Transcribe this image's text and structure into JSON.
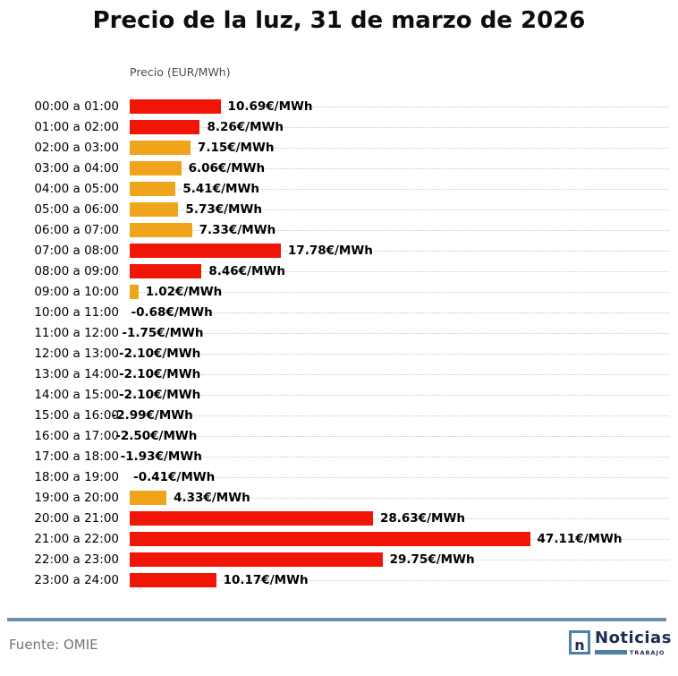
{
  "title": "Precio de la luz, 31 de marzo de 2026",
  "axis_title": "Precio (EUR/MWh)",
  "colors": {
    "red": "#f01507",
    "orange": "#f0a41c",
    "grid": "#c9c9c9",
    "divider": "#6a93ab",
    "navy": "#1d2c50",
    "steel_blue": "#4e7fa6",
    "source_gray": "#757575"
  },
  "chart_data": {
    "type": "bar",
    "orientation": "horizontal",
    "title": "Precio de la luz, 31 de marzo de 2026",
    "xlabel": "Precio (EUR/MWh)",
    "unit": "EUR/MWh",
    "xlim": [
      0,
      63.5
    ],
    "grid": "dotted-horizontal-per-row",
    "legend": "none",
    "categories": [
      "00:00 a 01:00",
      "01:00 a 02:00",
      "02:00 a 03:00",
      "03:00 a 04:00",
      "04:00 a 05:00",
      "05:00 a 06:00",
      "06:00 a 07:00",
      "07:00 a 08:00",
      "08:00 a 09:00",
      "09:00 a 10:00",
      "10:00 a 11:00",
      "11:00 a 12:00",
      "12:00 a 13:00",
      "13:00 a 14:00",
      "14:00 a 15:00",
      "15:00 a 16:00",
      "16:00 a 17:00",
      "17:00 a 18:00",
      "18:00 a 19:00",
      "19:00 a 20:00",
      "20:00 a 21:00",
      "21:00 a 22:00",
      "22:00 a 23:00",
      "23:00 a 24:00"
    ],
    "values": [
      10.69,
      8.26,
      7.15,
      6.06,
      5.41,
      5.73,
      7.33,
      17.78,
      8.46,
      1.02,
      -0.68,
      -1.75,
      -2.1,
      -2.1,
      -2.1,
      -2.99,
      -2.5,
      -1.93,
      -0.41,
      4.33,
      28.63,
      47.11,
      29.75,
      10.17
    ],
    "value_labels": [
      "10.69€/MWh",
      "8.26€/MWh",
      "7.15€/MWh",
      "6.06€/MWh",
      "5.41€/MWh",
      "5.73€/MWh",
      "7.33€/MWh",
      "17.78€/MWh",
      "8.46€/MWh",
      "1.02€/MWh",
      "-0.68€/MWh",
      "-1.75€/MWh",
      "-2.10€/MWh",
      "-2.10€/MWh",
      "-2.10€/MWh",
      "-2.99€/MWh",
      "-2.50€/MWh",
      "-1.93€/MWh",
      "-0.41€/MWh",
      "4.33€/MWh",
      "28.63€/MWh",
      "47.11€/MWh",
      "29.75€/MWh",
      "10.17€/MWh"
    ],
    "bar_colors": [
      "red",
      "red",
      "orange",
      "orange",
      "orange",
      "orange",
      "orange",
      "red",
      "red",
      "orange",
      null,
      null,
      null,
      null,
      null,
      null,
      null,
      null,
      null,
      "orange",
      "red",
      "red",
      "red",
      "red"
    ]
  },
  "footer": {
    "source": "Fuente: OMIE",
    "logo": {
      "icon_letter": "n",
      "brand": "Noticias",
      "tagline": "TRABAJO"
    }
  }
}
